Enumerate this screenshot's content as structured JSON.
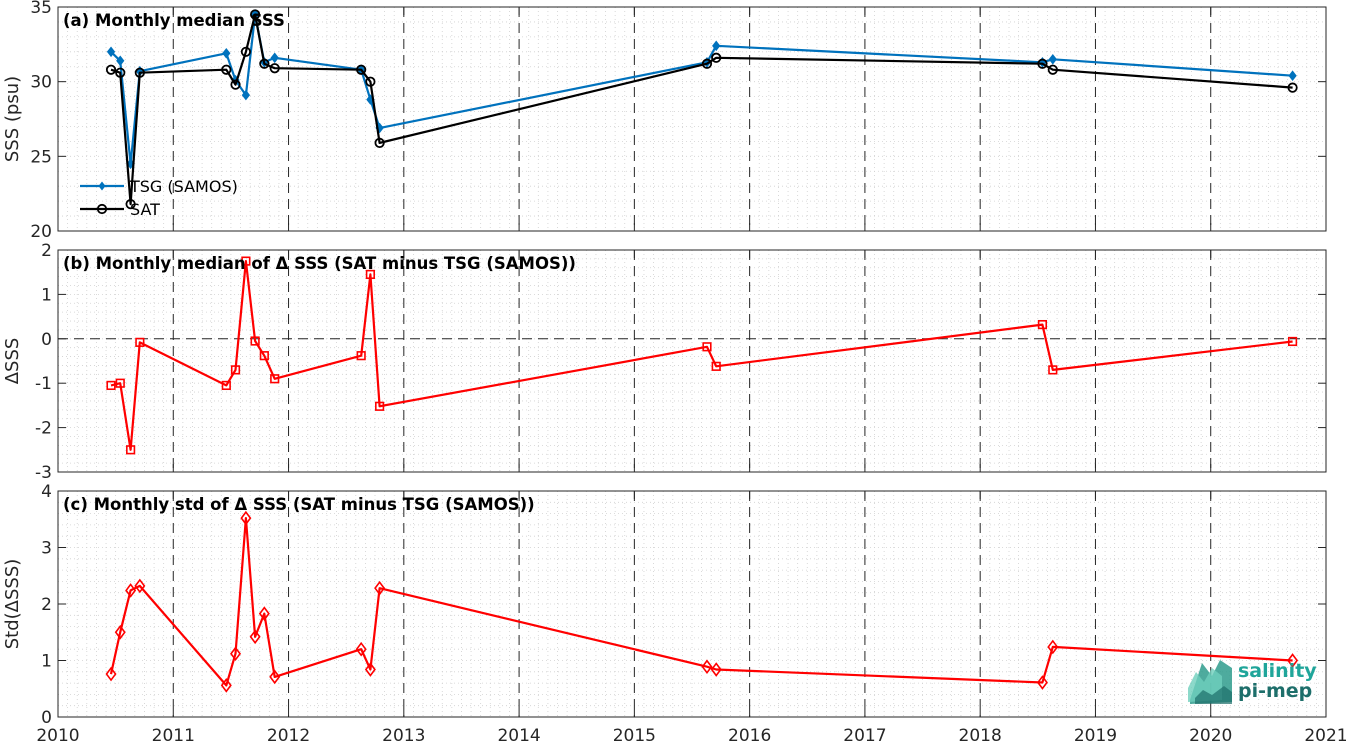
{
  "chart_data": [
    {
      "type": "line",
      "title": "(a) Monthly median SSS",
      "ylabel": "SSS (psu)",
      "xlim": [
        2010,
        2021
      ],
      "ylim": [
        20,
        35
      ],
      "yticks": [
        20,
        25,
        30,
        35
      ],
      "grid": true,
      "legend_position": "lower-left",
      "series": [
        {
          "name": "TSG (SAMOS)",
          "color": "#0072BD",
          "marker": "filled-diamond",
          "x": [
            2010.46,
            2010.54,
            2010.63,
            2010.71,
            2011.46,
            2011.54,
            2011.63,
            2011.71,
            2011.79,
            2011.88,
            2012.63,
            2012.71,
            2012.79,
            2015.63,
            2015.71,
            2018.54,
            2018.63,
            2020.71
          ],
          "y": [
            32.0,
            31.4,
            24.5,
            30.7,
            31.9,
            30.1,
            29.1,
            34.5,
            31.3,
            31.6,
            30.8,
            28.8,
            26.9,
            31.3,
            32.4,
            31.3,
            31.5,
            30.4
          ]
        },
        {
          "name": "SAT",
          "color": "#000000",
          "marker": "open-circle",
          "x": [
            2010.46,
            2010.54,
            2010.63,
            2010.71,
            2011.46,
            2011.54,
            2011.63,
            2011.71,
            2011.79,
            2011.88,
            2012.63,
            2012.71,
            2012.79,
            2015.63,
            2015.71,
            2018.54,
            2018.63,
            2020.71
          ],
          "y": [
            30.8,
            30.6,
            21.8,
            30.6,
            30.8,
            29.8,
            32.0,
            34.5,
            31.2,
            30.9,
            30.8,
            30.0,
            25.9,
            31.2,
            31.6,
            31.2,
            30.8,
            29.6
          ]
        }
      ]
    },
    {
      "type": "line",
      "title": "(b) Monthly median of Δ SSS (SAT minus TSG (SAMOS))",
      "ylabel": "ΔSSS",
      "xlim": [
        2010,
        2021
      ],
      "ylim": [
        -3,
        2
      ],
      "yticks": [
        -3,
        -2,
        -1,
        0,
        1,
        2
      ],
      "zero_line": true,
      "grid": true,
      "series": [
        {
          "color": "#FF0000",
          "marker": "open-square",
          "x": [
            2010.46,
            2010.54,
            2010.63,
            2010.71,
            2011.46,
            2011.54,
            2011.63,
            2011.71,
            2011.79,
            2011.88,
            2012.63,
            2012.71,
            2012.79,
            2015.63,
            2015.71,
            2018.54,
            2018.63,
            2020.71
          ],
          "y": [
            -1.05,
            -1.0,
            -2.5,
            -0.08,
            -1.05,
            -0.7,
            1.75,
            -0.05,
            -0.38,
            -0.9,
            -0.38,
            1.45,
            -1.52,
            -0.18,
            -0.62,
            0.32,
            -0.7,
            -0.06
          ]
        }
      ]
    },
    {
      "type": "line",
      "title": "(c) Monthly std of Δ SSS (SAT minus TSG (SAMOS))",
      "ylabel": "Std(ΔSSS)",
      "xlim": [
        2010,
        2021
      ],
      "ylim": [
        0,
        4
      ],
      "yticks": [
        0,
        1,
        2,
        3,
        4
      ],
      "grid": true,
      "series": [
        {
          "color": "#FF0000",
          "marker": "open-diamond",
          "x": [
            2010.46,
            2010.54,
            2010.63,
            2010.71,
            2011.46,
            2011.54,
            2011.63,
            2011.71,
            2011.79,
            2011.88,
            2012.63,
            2012.71,
            2012.79,
            2015.63,
            2015.71,
            2018.54,
            2018.63,
            2020.71
          ],
          "y": [
            0.76,
            1.5,
            2.24,
            2.32,
            0.56,
            1.12,
            3.52,
            1.42,
            1.83,
            0.71,
            1.2,
            0.84,
            2.28,
            0.89,
            0.84,
            0.61,
            1.24,
            1.0
          ]
        }
      ]
    }
  ],
  "x_ticks": [
    "2010",
    "2011",
    "2012",
    "2013",
    "2014",
    "2015",
    "2016",
    "2017",
    "2018",
    "2019",
    "2020",
    "2021"
  ],
  "logo": {
    "line1": "salinity",
    "line2": "pi-mep",
    "color": "#1fa59a"
  }
}
